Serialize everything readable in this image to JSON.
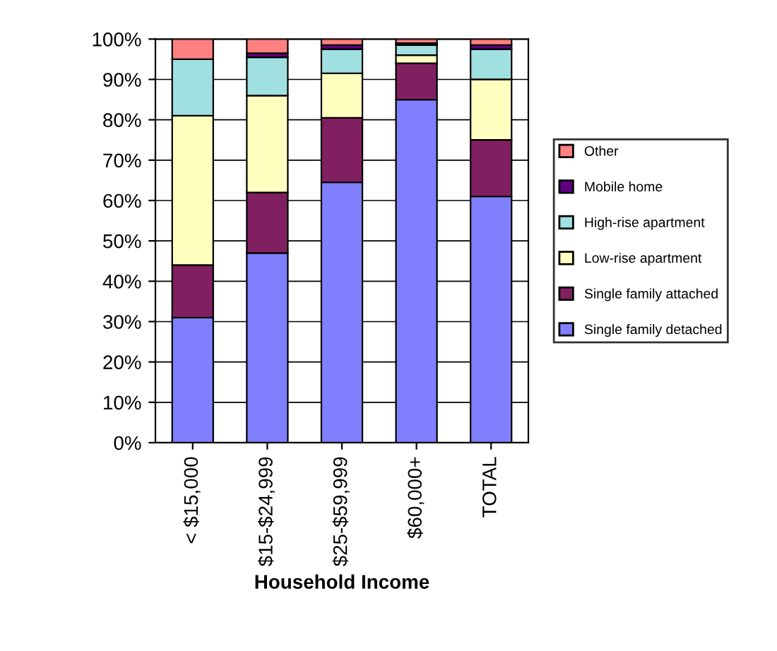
{
  "chart_data": {
    "type": "bar",
    "stacked": true,
    "xlabel": "Household Income",
    "categories": [
      "< $15,000",
      "$15-$24,999",
      "$25-$59,999",
      "$60,000+",
      "TOTAL"
    ],
    "series": [
      {
        "name": "Single family detached",
        "color": "#8080ff",
        "values": [
          31,
          47,
          64.5,
          85,
          61
        ]
      },
      {
        "name": "Single family attached",
        "color": "#802060",
        "values": [
          13,
          15,
          16,
          9,
          14
        ]
      },
      {
        "name": "Low-rise apartment",
        "color": "#ffffc0",
        "values": [
          37,
          24,
          11,
          2,
          15
        ]
      },
      {
        "name": "High-rise apartment",
        "color": "#a0e0e0",
        "values": [
          14,
          9.5,
          6,
          2.5,
          7.5
        ]
      },
      {
        "name": "Mobile home",
        "color": "#600080",
        "values": [
          0,
          1,
          1,
          0.5,
          1
        ]
      },
      {
        "name": "Other",
        "color": "#ff8080",
        "values": [
          5,
          3.5,
          1.5,
          1,
          1.5
        ]
      }
    ],
    "ylim": [
      0,
      100
    ],
    "yticks": [
      {
        "value": 0,
        "label": "0%"
      },
      {
        "value": 10,
        "label": "10%"
      },
      {
        "value": 20,
        "label": "20%"
      },
      {
        "value": 30,
        "label": "30%"
      },
      {
        "value": 40,
        "label": "40%"
      },
      {
        "value": 50,
        "label": "50%"
      },
      {
        "value": 60,
        "label": "60%"
      },
      {
        "value": 70,
        "label": "70%"
      },
      {
        "value": 80,
        "label": "80%"
      },
      {
        "value": 90,
        "label": "90%"
      },
      {
        "value": 100,
        "label": "100%"
      }
    ],
    "grid": "y",
    "legend": "right"
  }
}
